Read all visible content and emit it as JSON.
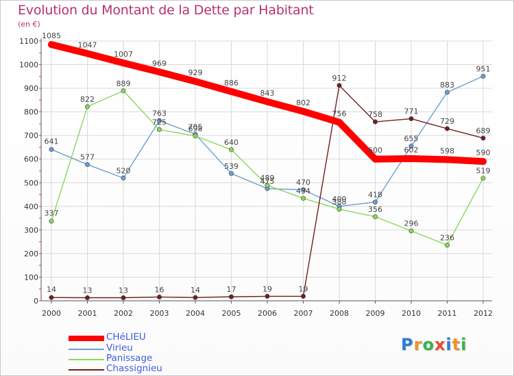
{
  "title": "Evolution du Montant de la Dette par Habitant",
  "unit_label": "(en €)",
  "brand": "Proxiti",
  "colors": {
    "title": "#b83070",
    "legend_text": "#3e5ce0",
    "grid": "#d9d9d9",
    "tick_red": "#d33"
  },
  "chart_data": {
    "type": "line",
    "x": [
      "2000",
      "2001",
      "2002",
      "2003",
      "2004",
      "2005",
      "2006",
      "2007",
      "2008",
      "2009",
      "2010",
      "2011",
      "2012"
    ],
    "ylim": [
      0,
      1100
    ],
    "yticks": [
      0,
      100,
      200,
      300,
      400,
      500,
      600,
      700,
      800,
      900,
      1000,
      1100
    ],
    "grid": true,
    "legend_position": "bottom-left",
    "series": [
      {
        "name": "CHéLIEU",
        "color": "#ff0000",
        "width": 10,
        "marker": 5,
        "values": [
          1085,
          1047,
          1007,
          969,
          929,
          886,
          843,
          802,
          756,
          600,
          602,
          598,
          590
        ],
        "labels": [
          "1085",
          "1047",
          "1007",
          "969",
          "929",
          "886",
          "843",
          "802",
          "756",
          "600",
          "602",
          "598",
          "590"
        ]
      },
      {
        "name": "Virieu",
        "color": "#6a9fd0",
        "width": 1.4,
        "marker": 3.2,
        "values": [
          641,
          577,
          520,
          763,
          705,
          539,
          475,
          470,
          400,
          418,
          655,
          883,
          951
        ],
        "labels": [
          "641",
          "577",
          "520",
          "763",
          "705",
          "539",
          "475",
          "470",
          "400",
          "418",
          "655",
          "883",
          "951"
        ]
      },
      {
        "name": "Panissage",
        "color": "#88d858",
        "width": 1.4,
        "marker": 3.2,
        "values": [
          337,
          822,
          889,
          725,
          698,
          640,
          489,
          434,
          388,
          356,
          296,
          236,
          519
        ],
        "labels": [
          "337",
          "822",
          "889",
          "725",
          "698",
          "640",
          "489",
          "434",
          "388",
          "356",
          "296",
          "236",
          "519"
        ]
      },
      {
        "name": "Chassignieu",
        "color": "#6e1f1f",
        "width": 1.4,
        "marker": 3.2,
        "values": [
          14,
          13,
          13,
          16,
          14,
          17,
          19,
          19,
          912,
          758,
          771,
          729,
          689
        ],
        "labels": [
          "14",
          "13",
          "13",
          "16",
          "14",
          "17",
          "19",
          "19",
          "912",
          "758",
          "771",
          "729",
          "689"
        ]
      }
    ]
  }
}
